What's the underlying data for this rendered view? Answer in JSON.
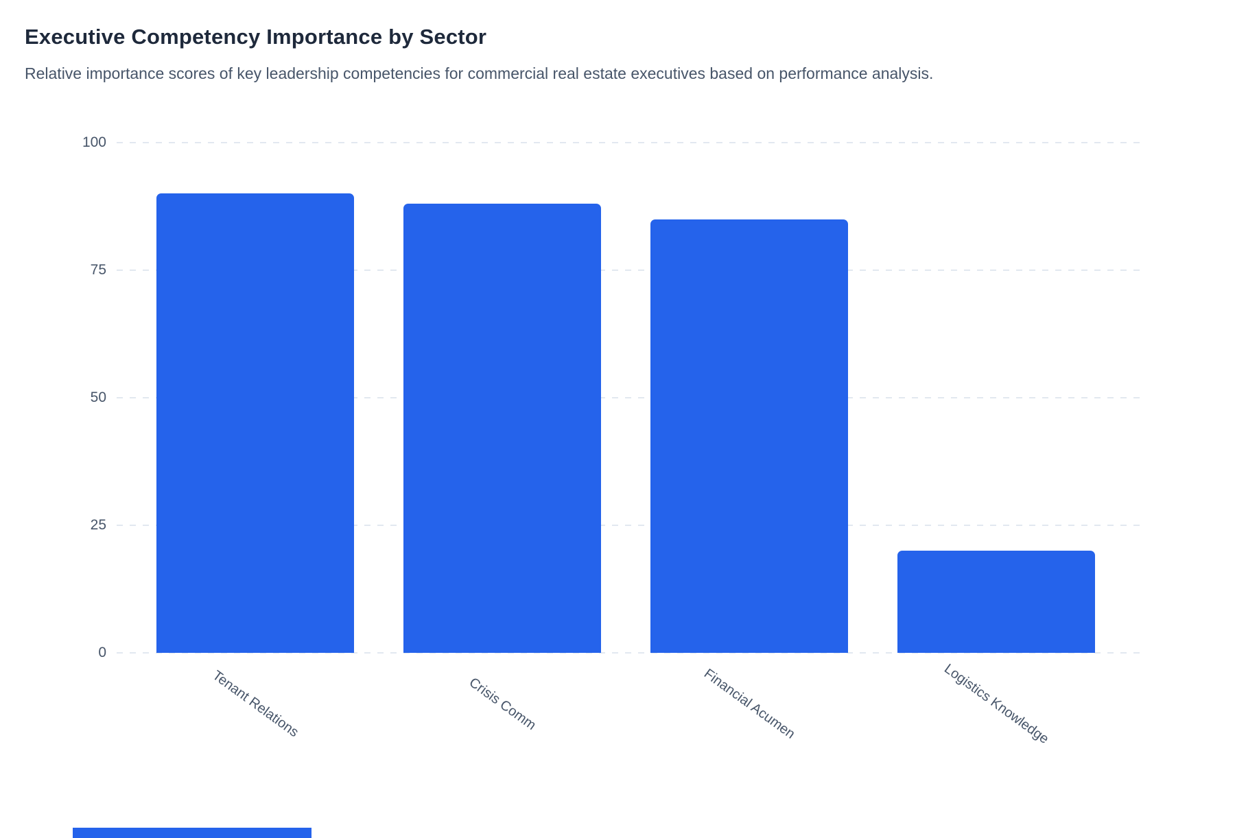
{
  "header": {
    "title": "Executive Competency Importance by Sector",
    "subtitle": "Relative importance scores of key leadership competencies for commercial real estate executives based on performance analysis."
  },
  "chart_data": {
    "type": "bar",
    "title": "Executive Competency Importance by Sector",
    "subtitle": "Relative importance scores of key leadership competencies for commercial real estate executives based on performance analysis.",
    "categories": [
      "Tenant Relations",
      "Crisis Comm",
      "Financial Acumen",
      "Logistics Knowledge"
    ],
    "values": [
      90,
      88,
      85,
      20
    ],
    "xlabel": "",
    "ylabel": "",
    "ylim": [
      0,
      100
    ],
    "yticks": [
      0,
      25,
      50,
      75,
      100
    ],
    "grid": "horizontal-dashed",
    "legend": "none",
    "bar_color": "#2563eb",
    "tick_label_color": "#475569",
    "x_label_rotation_deg": 36
  },
  "colors": {
    "background": "#ffffff",
    "title": "#1e293b",
    "subtitle": "#475569",
    "gridline": "#e2e8f0",
    "bar": "#2563eb",
    "footer_accent": "#2563eb"
  }
}
